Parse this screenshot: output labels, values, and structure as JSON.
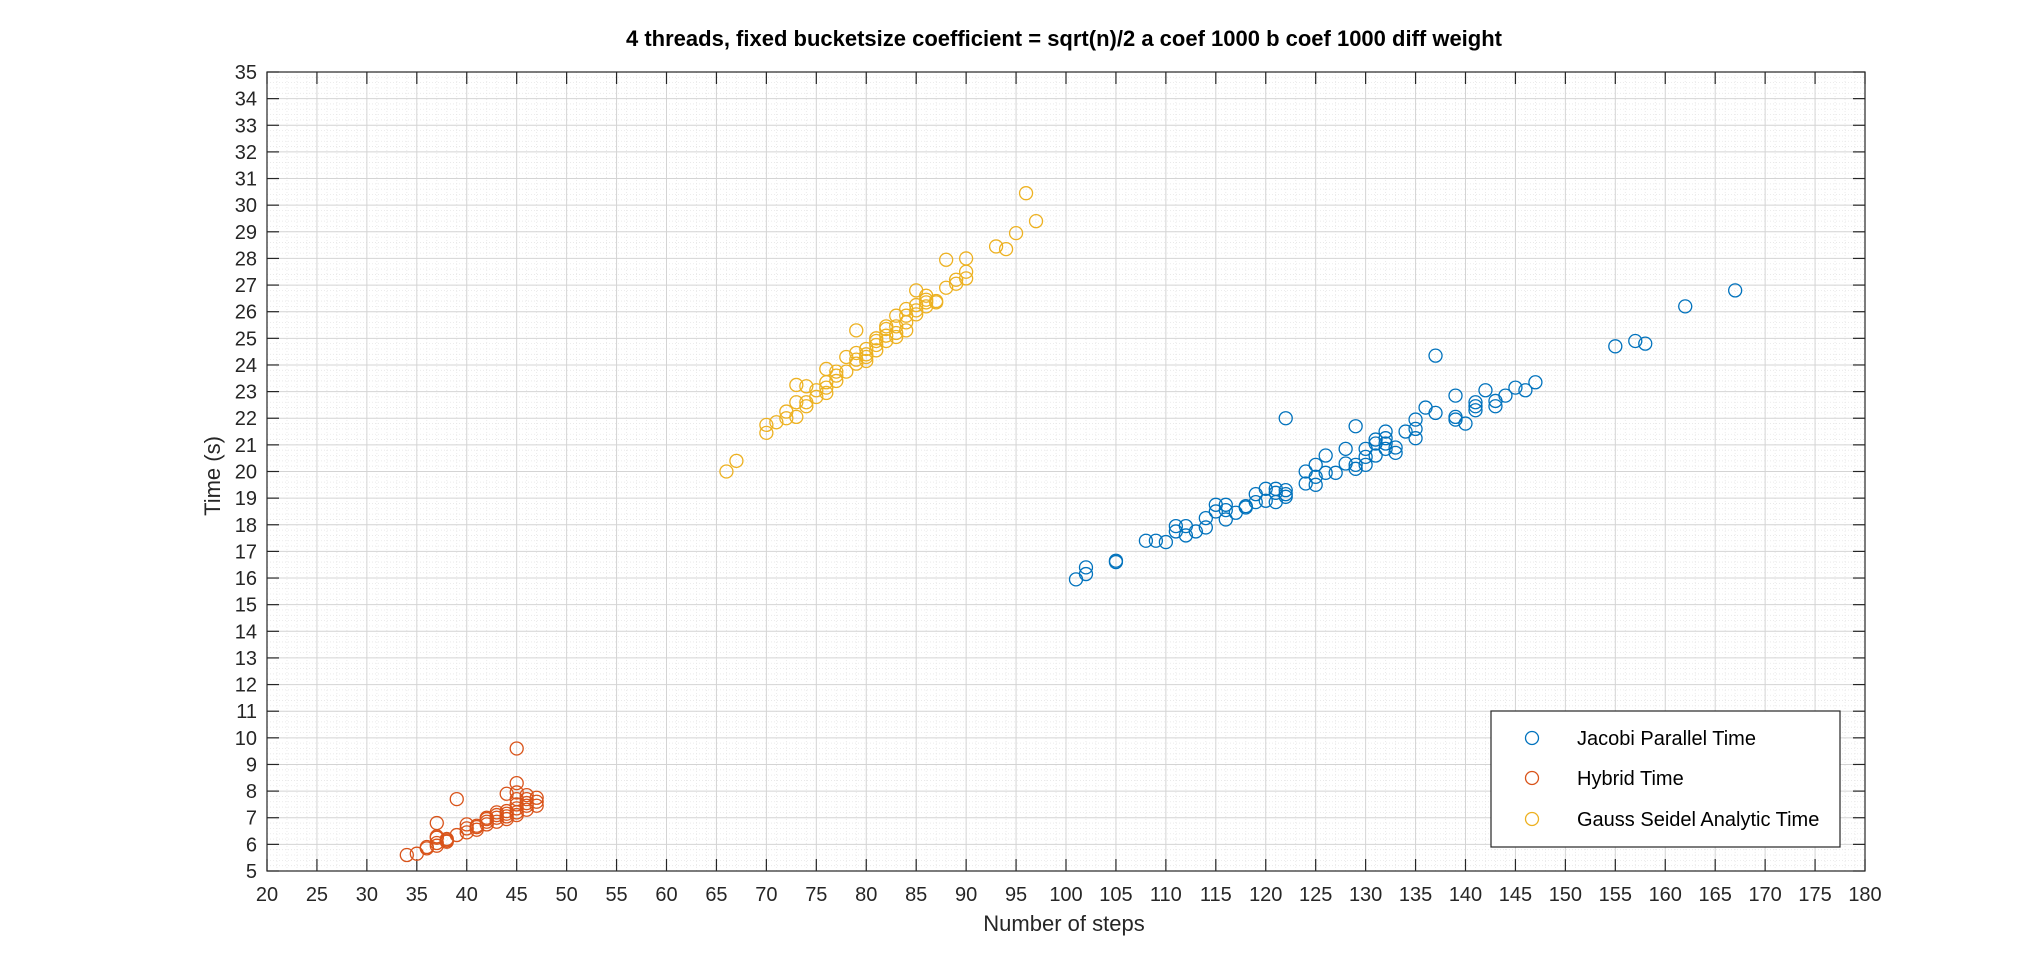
{
  "chart_data": {
    "type": "scatter",
    "title": "4 threads, fixed bucketsize coefficient = sqrt(n)/2 a coef 1000 b coef 1000 diff weight",
    "xlabel": "Number of steps",
    "ylabel": "Time (s)",
    "xlim": [
      20,
      180
    ],
    "ylim": [
      5,
      35
    ],
    "xticks": [
      "20",
      "25",
      "30",
      "35",
      "40",
      "45",
      "50",
      "55",
      "60",
      "65",
      "70",
      "75",
      "80",
      "85",
      "90",
      "95",
      "100",
      "105",
      "110",
      "115",
      "120",
      "125",
      "130",
      "135",
      "140",
      "145",
      "150",
      "155",
      "160",
      "165",
      "170",
      "175",
      "180"
    ],
    "yticks": [
      "5",
      "6",
      "7",
      "8",
      "9",
      "10",
      "11",
      "12",
      "13",
      "14",
      "15",
      "16",
      "17",
      "18",
      "19",
      "20",
      "21",
      "22",
      "23",
      "24",
      "25",
      "26",
      "27",
      "28",
      "29",
      "30",
      "31",
      "32",
      "33",
      "34",
      "35"
    ],
    "grid": true,
    "minor_grid": true,
    "marker": "open-circle",
    "legend_position": "bottom-right",
    "series": [
      {
        "name": "Jacobi Parallel Time",
        "color": "#0072BD",
        "points": [
          [
            101,
            15.95
          ],
          [
            102,
            16.15
          ],
          [
            102,
            16.4
          ],
          [
            105,
            16.6
          ],
          [
            105,
            16.65
          ],
          [
            108,
            17.4
          ],
          [
            109,
            17.4
          ],
          [
            110,
            17.35
          ],
          [
            111,
            17.75
          ],
          [
            111,
            17.95
          ],
          [
            112,
            17.6
          ],
          [
            112,
            17.95
          ],
          [
            113,
            17.75
          ],
          [
            114,
            17.9
          ],
          [
            114,
            18.25
          ],
          [
            115,
            18.5
          ],
          [
            115,
            18.75
          ],
          [
            116,
            18.2
          ],
          [
            116,
            18.55
          ],
          [
            116,
            18.75
          ],
          [
            117,
            18.45
          ],
          [
            118,
            18.65
          ],
          [
            118,
            18.7
          ],
          [
            119,
            18.85
          ],
          [
            119,
            19.15
          ],
          [
            120,
            18.9
          ],
          [
            120,
            19.35
          ],
          [
            121,
            18.85
          ],
          [
            121,
            19.2
          ],
          [
            121,
            19.35
          ],
          [
            122,
            19.05
          ],
          [
            122,
            19.3
          ],
          [
            122,
            19.15
          ],
          [
            122,
            22.0
          ],
          [
            124,
            19.55
          ],
          [
            124,
            20.0
          ],
          [
            125,
            19.5
          ],
          [
            125,
            19.8
          ],
          [
            125,
            20.25
          ],
          [
            126,
            19.95
          ],
          [
            126,
            20.6
          ],
          [
            127,
            19.95
          ],
          [
            128,
            20.3
          ],
          [
            128,
            20.85
          ],
          [
            129,
            20.1
          ],
          [
            129,
            20.25
          ],
          [
            129,
            21.7
          ],
          [
            130,
            20.25
          ],
          [
            130,
            20.55
          ],
          [
            130,
            20.85
          ],
          [
            131,
            20.6
          ],
          [
            131,
            21.05
          ],
          [
            131,
            21.2
          ],
          [
            132,
            20.85
          ],
          [
            132,
            21.05
          ],
          [
            132,
            21.25
          ],
          [
            132,
            21.5
          ],
          [
            133,
            20.7
          ],
          [
            133,
            20.9
          ],
          [
            134,
            21.5
          ],
          [
            135,
            21.25
          ],
          [
            135,
            21.6
          ],
          [
            135,
            21.95
          ],
          [
            136,
            22.4
          ],
          [
            137,
            22.2
          ],
          [
            137,
            24.35
          ],
          [
            139,
            21.95
          ],
          [
            139,
            22.05
          ],
          [
            139,
            22.85
          ],
          [
            140,
            21.8
          ],
          [
            141,
            22.3
          ],
          [
            141,
            22.45
          ],
          [
            141,
            22.6
          ],
          [
            142,
            23.05
          ],
          [
            143,
            22.45
          ],
          [
            143,
            22.65
          ],
          [
            144,
            22.85
          ],
          [
            145,
            23.15
          ],
          [
            146,
            23.05
          ],
          [
            147,
            23.35
          ],
          [
            155,
            24.7
          ],
          [
            157,
            24.9
          ],
          [
            158,
            24.8
          ],
          [
            162,
            26.2
          ],
          [
            167,
            26.8
          ]
        ]
      },
      {
        "name": "Hybrid Time",
        "color": "#D95319",
        "points": [
          [
            34,
            5.6
          ],
          [
            35,
            5.65
          ],
          [
            36,
            5.85
          ],
          [
            36,
            5.9
          ],
          [
            37,
            5.95
          ],
          [
            37,
            6.05
          ],
          [
            37,
            6.25
          ],
          [
            37,
            6.3
          ],
          [
            37,
            6.8
          ],
          [
            38,
            6.1
          ],
          [
            38,
            6.15
          ],
          [
            38,
            6.2
          ],
          [
            39,
            6.35
          ],
          [
            39,
            7.7
          ],
          [
            40,
            6.45
          ],
          [
            40,
            6.6
          ],
          [
            40,
            6.75
          ],
          [
            41,
            6.55
          ],
          [
            41,
            6.65
          ],
          [
            41,
            6.7
          ],
          [
            42,
            6.75
          ],
          [
            42,
            6.85
          ],
          [
            42,
            6.95
          ],
          [
            42,
            7.0
          ],
          [
            43,
            6.85
          ],
          [
            43,
            7.0
          ],
          [
            43,
            7.1
          ],
          [
            43,
            7.2
          ],
          [
            44,
            6.95
          ],
          [
            44,
            7.05
          ],
          [
            44,
            7.15
          ],
          [
            44,
            7.25
          ],
          [
            44,
            7.9
          ],
          [
            45,
            7.1
          ],
          [
            45,
            7.2
          ],
          [
            45,
            7.35
          ],
          [
            45,
            7.5
          ],
          [
            45,
            7.7
          ],
          [
            45,
            7.95
          ],
          [
            45,
            8.3
          ],
          [
            45,
            9.6
          ],
          [
            46,
            7.3
          ],
          [
            46,
            7.45
          ],
          [
            46,
            7.55
          ],
          [
            46,
            7.7
          ],
          [
            46,
            7.85
          ],
          [
            47,
            7.45
          ],
          [
            47,
            7.6
          ],
          [
            47,
            7.75
          ]
        ]
      },
      {
        "name": "Gauss Seidel Analytic Time",
        "color": "#EDB120",
        "points": [
          [
            66,
            20.0
          ],
          [
            67,
            20.4
          ],
          [
            70,
            21.45
          ],
          [
            70,
            21.75
          ],
          [
            71,
            21.85
          ],
          [
            72,
            22.0
          ],
          [
            72,
            22.25
          ],
          [
            73,
            22.05
          ],
          [
            73,
            22.6
          ],
          [
            73,
            23.25
          ],
          [
            74,
            22.45
          ],
          [
            74,
            22.6
          ],
          [
            74,
            23.2
          ],
          [
            75,
            22.8
          ],
          [
            75,
            23.05
          ],
          [
            76,
            22.95
          ],
          [
            76,
            23.15
          ],
          [
            76,
            23.35
          ],
          [
            76,
            23.85
          ],
          [
            77,
            23.4
          ],
          [
            77,
            23.6
          ],
          [
            77,
            23.75
          ],
          [
            78,
            23.75
          ],
          [
            78,
            24.3
          ],
          [
            79,
            24.05
          ],
          [
            79,
            24.2
          ],
          [
            79,
            24.45
          ],
          [
            79,
            25.3
          ],
          [
            80,
            24.15
          ],
          [
            80,
            24.3
          ],
          [
            80,
            24.4
          ],
          [
            80,
            24.6
          ],
          [
            81,
            24.55
          ],
          [
            81,
            24.75
          ],
          [
            81,
            24.9
          ],
          [
            81,
            25.0
          ],
          [
            82,
            24.9
          ],
          [
            82,
            25.1
          ],
          [
            82,
            25.35
          ],
          [
            82,
            25.45
          ],
          [
            83,
            25.05
          ],
          [
            83,
            25.2
          ],
          [
            83,
            25.45
          ],
          [
            83,
            25.85
          ],
          [
            84,
            25.3
          ],
          [
            84,
            25.6
          ],
          [
            84,
            25.85
          ],
          [
            84,
            26.1
          ],
          [
            85,
            25.9
          ],
          [
            85,
            26.05
          ],
          [
            85,
            26.25
          ],
          [
            85,
            26.8
          ],
          [
            86,
            26.2
          ],
          [
            86,
            26.35
          ],
          [
            86,
            26.45
          ],
          [
            86,
            26.6
          ],
          [
            87,
            26.35
          ],
          [
            87,
            26.4
          ],
          [
            88,
            26.9
          ],
          [
            88,
            27.95
          ],
          [
            89,
            27.05
          ],
          [
            89,
            27.2
          ],
          [
            90,
            27.25
          ],
          [
            90,
            27.5
          ],
          [
            90,
            28.0
          ],
          [
            93,
            28.45
          ],
          [
            94,
            28.35
          ],
          [
            95,
            28.95
          ],
          [
            96,
            30.45
          ],
          [
            97,
            29.4
          ]
        ]
      }
    ]
  }
}
